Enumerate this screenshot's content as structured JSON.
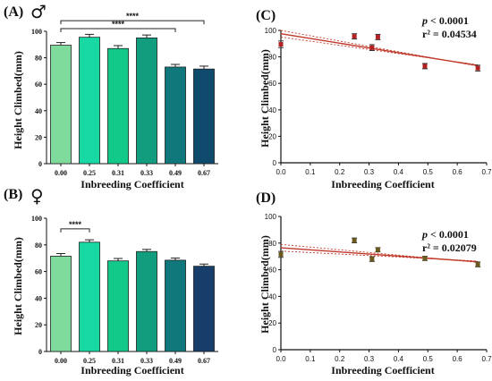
{
  "chart_data": [
    {
      "id": "A",
      "type": "bar",
      "panel_label": "(A)",
      "sex_symbol": "♂",
      "xlabel": "Inbreeding Coefficient",
      "ylabel": "Height Climbed(mm)",
      "categories": [
        "0.00",
        "0.25",
        "0.31",
        "0.33",
        "0.49",
        "0.67"
      ],
      "values": [
        89.5,
        95.5,
        87.0,
        95.0,
        73.0,
        71.5
      ],
      "errors": [
        2.0,
        2.2,
        2.2,
        2.2,
        2.0,
        2.2
      ],
      "colors": [
        "#7edb9b",
        "#18d9a3",
        "#12c98a",
        "#129e7e",
        "#10787a",
        "#0d4a6b"
      ],
      "ylim": [
        0,
        100
      ],
      "yticks": [
        0,
        20,
        40,
        60,
        80,
        100
      ],
      "significance": [
        {
          "from": 0,
          "to": 5,
          "label": "****",
          "level": 108
        },
        {
          "from": 0,
          "to": 4,
          "label": "****",
          "level": 102
        }
      ]
    },
    {
      "id": "B",
      "type": "bar",
      "panel_label": "(B)",
      "sex_symbol": "♀",
      "xlabel": "Inbreeding Coefficient",
      "ylabel": "Height Climbed(mm)",
      "categories": [
        "0.00",
        "0.25",
        "0.31",
        "0.33",
        "0.49",
        "0.67"
      ],
      "values": [
        71.5,
        82.0,
        68.0,
        75.0,
        68.5,
        64.0
      ],
      "errors": [
        2.0,
        1.8,
        1.8,
        1.6,
        1.6,
        1.6
      ],
      "colors": [
        "#7edb9b",
        "#18d9a3",
        "#12c98a",
        "#129e7e",
        "#10787a",
        "#173d6b"
      ],
      "ylim": [
        0,
        100
      ],
      "yticks": [
        0,
        20,
        40,
        60,
        80,
        100
      ],
      "significance": [
        {
          "from": 0,
          "to": 1,
          "label": "****",
          "level": 92
        }
      ]
    },
    {
      "id": "C",
      "type": "scatter",
      "panel_label": "(C)",
      "xlabel": "Inbreeding Coefficient",
      "ylabel": "Height Climbed(mm)",
      "p_prefix": "p",
      "p_suffix": " < 0.0001",
      "r2_text": "r² = 0.04534",
      "x": [
        0.0,
        0.25,
        0.31,
        0.33,
        0.49,
        0.67
      ],
      "y": [
        89.5,
        95.5,
        87.0,
        95.0,
        73.0,
        71.5
      ],
      "errors": [
        2.5,
        2.0,
        2.2,
        2.0,
        2.0,
        2.2
      ],
      "regression": {
        "x0": 0.0,
        "y0": 97.5,
        "x1": 0.67,
        "y1": 73.5,
        "ci": 2.5
      },
      "point_color": "#b22222",
      "line_color": "#c0392b",
      "xlim": [
        0,
        0.7
      ],
      "ylim": [
        0,
        100
      ],
      "xticks": [
        "0.0",
        "0.1",
        "0.2",
        "0.3",
        "0.4",
        "0.5",
        "0.6",
        "0.7"
      ],
      "yticks": [
        0,
        20,
        40,
        60,
        80,
        100
      ]
    },
    {
      "id": "D",
      "type": "scatter",
      "panel_label": "(D)",
      "xlabel": "Inbreeding Coefficient",
      "ylabel": "Height Climbed(mm)",
      "p_prefix": "p",
      "p_suffix": " < 0.0001",
      "r2_text": "r² = 0.02079",
      "x": [
        0.0,
        0.25,
        0.31,
        0.33,
        0.49,
        0.67
      ],
      "y": [
        71.5,
        82.0,
        68.0,
        75.0,
        68.5,
        64.0
      ],
      "errors": [
        2.2,
        1.8,
        1.8,
        1.6,
        1.6,
        1.8
      ],
      "regression": {
        "x0": 0.0,
        "y0": 76.5,
        "x1": 0.67,
        "y1": 66.0,
        "ci": 2.5
      },
      "point_color": "#6b5a1e",
      "line_color": "#c0392b",
      "xlim": [
        0,
        0.7
      ],
      "ylim": [
        0,
        100
      ],
      "xticks": [
        "0.0",
        "0.1",
        "0.2",
        "0.3",
        "0.4",
        "0.5",
        "0.6",
        "0.7"
      ],
      "yticks": [
        0,
        20,
        40,
        60,
        80,
        100
      ]
    }
  ]
}
